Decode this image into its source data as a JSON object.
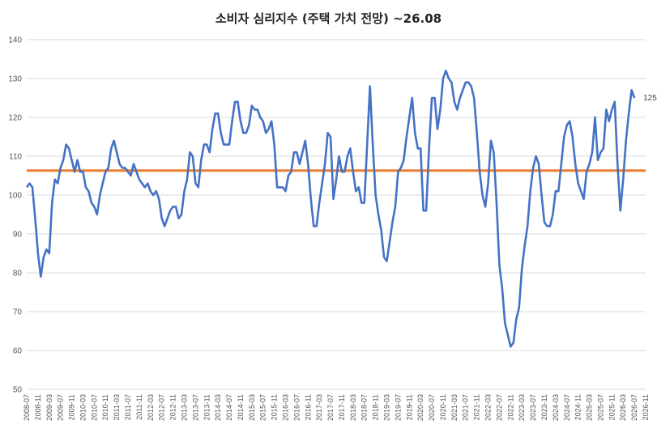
{
  "chart_data": {
    "type": "line",
    "title": "소비자 심리지수 (주택 가치 전망) ~26.08",
    "ylim": [
      50,
      140
    ],
    "yticks": [
      50,
      60,
      70,
      80,
      90,
      100,
      110,
      120,
      130,
      140
    ],
    "grid": "horizontal",
    "x_tick_labels": [
      "2008-07",
      "2008-11",
      "2009-03",
      "2009-07",
      "2009-11",
      "2010-03",
      "2010-07",
      "2010-11",
      "2011-03",
      "2011-07",
      "2011-11",
      "2012-03",
      "2012-07",
      "2012-11",
      "2013-03",
      "2013-07",
      "2013-11",
      "2014-03",
      "2014-07",
      "2014-11",
      "2015-03",
      "2015-07",
      "2015-11",
      "2016-03",
      "2016-07",
      "2016-11",
      "2017-03",
      "2017-07",
      "2017-11",
      "2018-03",
      "2018-07",
      "2018-11",
      "2019-03",
      "2019-07",
      "2019-11",
      "2020-03",
      "2020-07",
      "2020-11",
      "2021-03",
      "2021-07",
      "2021-11",
      "2022-03",
      "2022-07",
      "2022-11",
      "2023-03",
      "2023-07",
      "2023-11",
      "2024-03",
      "2024-07",
      "2024-11",
      "2025-03",
      "2025-07",
      "2025-11",
      "2026-03",
      "2026-07",
      "2026-11"
    ],
    "series": [
      {
        "color": "#4472C4",
        "x_start": "2008-07",
        "x_end": "2026-08",
        "values": [
          102,
          103,
          102,
          94,
          85,
          79,
          84,
          86,
          85,
          98,
          104,
          103,
          107,
          109,
          113,
          112,
          109,
          106,
          109,
          106,
          106,
          102,
          101,
          98,
          97,
          95,
          100,
          103,
          106,
          107,
          112,
          114,
          111,
          108,
          107,
          107,
          106,
          105,
          108,
          106,
          104,
          103,
          102,
          103,
          101,
          100,
          101,
          99,
          94,
          92,
          94,
          96,
          97,
          97,
          94,
          95,
          101,
          104,
          111,
          110,
          103,
          102,
          109,
          113,
          113,
          111,
          117,
          121,
          121,
          116,
          113,
          113,
          113,
          119,
          124,
          124,
          119,
          116,
          116,
          118,
          123,
          122,
          122,
          120,
          119,
          116,
          117,
          119,
          113,
          102,
          102,
          102,
          101,
          105,
          106,
          111,
          111,
          108,
          111,
          114,
          108,
          99,
          92,
          92,
          98,
          103,
          108,
          116,
          115,
          99,
          104,
          110,
          106,
          106,
          110,
          112,
          106,
          101,
          102,
          98,
          98,
          113,
          128,
          113,
          100,
          95,
          91,
          84,
          83,
          88,
          93,
          97,
          106,
          107,
          109,
          115,
          120,
          125,
          116,
          112,
          112,
          96,
          96,
          112,
          125,
          125,
          117,
          122,
          130,
          132,
          130,
          129,
          124,
          122,
          125,
          127,
          129,
          129,
          128,
          125,
          116,
          106,
          100,
          97,
          103,
          114,
          111,
          98,
          82,
          76,
          67,
          64,
          61,
          62,
          68,
          71,
          81,
          87,
          92,
          101,
          107,
          110,
          108,
          100,
          93,
          92,
          92,
          95,
          101,
          101,
          108,
          115,
          118,
          119,
          115,
          108,
          103,
          101,
          99,
          106,
          108,
          111,
          120,
          109,
          111,
          112,
          122,
          119,
          122,
          124,
          108,
          96,
          104,
          114,
          121,
          127,
          125
        ],
        "end_label": "125"
      },
      {
        "color": "#ED7D31",
        "type": "reference_line",
        "value": 106.3
      }
    ]
  }
}
